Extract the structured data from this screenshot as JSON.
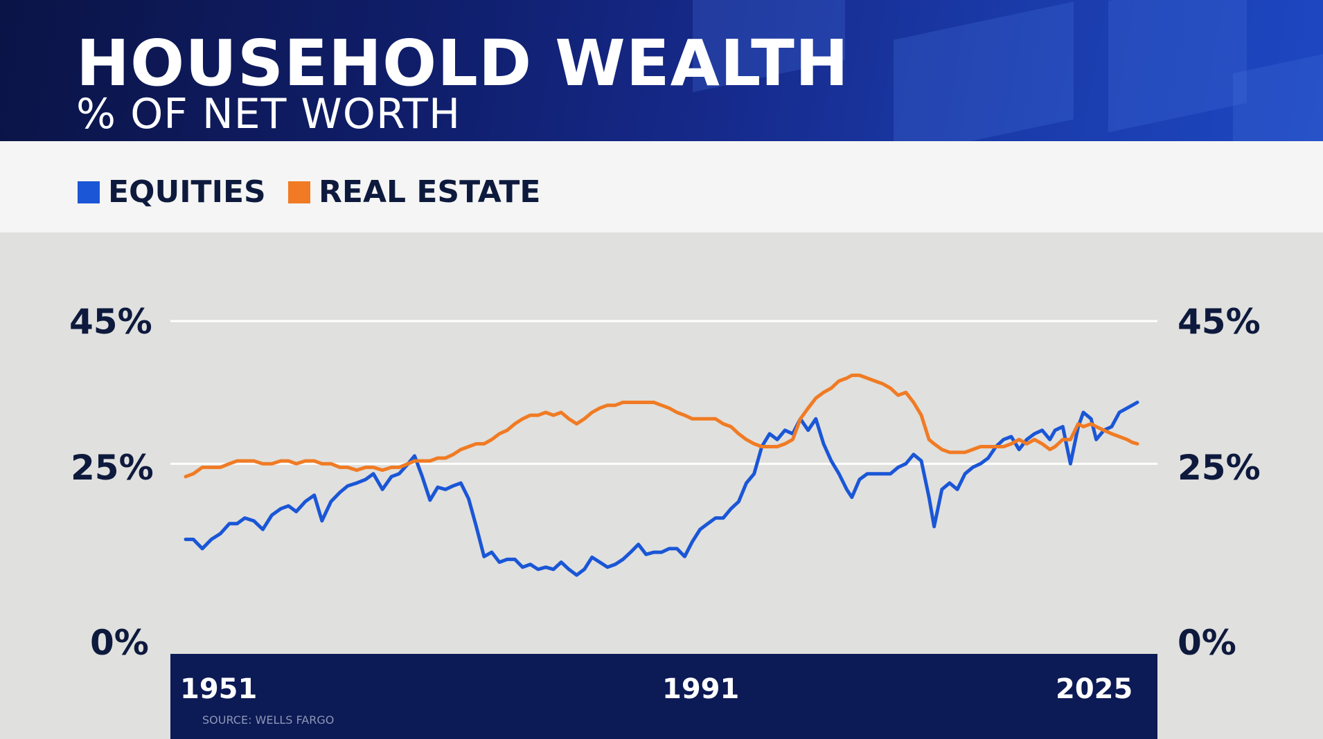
{
  "chart_data": {
    "type": "line",
    "title": "HOUSEHOLD WEALTH",
    "subtitle": "% OF NET WORTH",
    "source": "SOURCE: WELLS FARGO",
    "xlabel": "",
    "ylabel": "",
    "xlim": [
      1951,
      2025
    ],
    "ylim": [
      0,
      45
    ],
    "x_ticks": [
      "1951",
      "1991",
      "2025"
    ],
    "y_ticks": [
      "45%",
      "25%",
      "0%"
    ],
    "gridlines": [
      25,
      45
    ],
    "legend": [
      "EQUITIES",
      "REAL ESTATE"
    ],
    "series": [
      {
        "name": "EQUITIES",
        "color": "#1a56d6",
        "points": [
          [
            1951.0,
            14.4
          ],
          [
            1951.6,
            14.4
          ],
          [
            1952.3,
            13.1
          ],
          [
            1953.0,
            14.4
          ],
          [
            1953.7,
            15.2
          ],
          [
            1954.4,
            16.6
          ],
          [
            1955.0,
            16.6
          ],
          [
            1955.6,
            17.4
          ],
          [
            1956.3,
            17.0
          ],
          [
            1957.0,
            15.8
          ],
          [
            1957.7,
            17.8
          ],
          [
            1958.4,
            18.7
          ],
          [
            1959.0,
            19.1
          ],
          [
            1959.6,
            18.3
          ],
          [
            1960.3,
            19.7
          ],
          [
            1961.0,
            20.6
          ],
          [
            1961.6,
            17.0
          ],
          [
            1962.3,
            19.7
          ],
          [
            1963.0,
            21.0
          ],
          [
            1963.6,
            21.9
          ],
          [
            1964.3,
            22.3
          ],
          [
            1965.0,
            22.8
          ],
          [
            1965.6,
            23.6
          ],
          [
            1966.3,
            21.4
          ],
          [
            1967.0,
            23.2
          ],
          [
            1967.6,
            23.6
          ],
          [
            1968.3,
            25.0
          ],
          [
            1968.8,
            26.1
          ],
          [
            1969.4,
            23.2
          ],
          [
            1970.0,
            19.9
          ],
          [
            1970.6,
            21.7
          ],
          [
            1971.2,
            21.4
          ],
          [
            1971.8,
            21.9
          ],
          [
            1972.4,
            22.3
          ],
          [
            1973.0,
            20.1
          ],
          [
            1973.6,
            16.2
          ],
          [
            1974.2,
            12.0
          ],
          [
            1974.8,
            12.6
          ],
          [
            1975.4,
            11.2
          ],
          [
            1976.0,
            11.6
          ],
          [
            1976.6,
            11.6
          ],
          [
            1977.2,
            10.5
          ],
          [
            1977.8,
            10.9
          ],
          [
            1978.4,
            10.2
          ],
          [
            1979.0,
            10.5
          ],
          [
            1979.6,
            10.2
          ],
          [
            1980.2,
            11.2
          ],
          [
            1980.8,
            10.2
          ],
          [
            1981.4,
            9.4
          ],
          [
            1982.0,
            10.2
          ],
          [
            1982.6,
            11.9
          ],
          [
            1983.2,
            11.2
          ],
          [
            1983.8,
            10.5
          ],
          [
            1984.4,
            10.9
          ],
          [
            1985.0,
            11.6
          ],
          [
            1985.6,
            12.6
          ],
          [
            1986.2,
            13.7
          ],
          [
            1986.8,
            12.3
          ],
          [
            1987.4,
            12.6
          ],
          [
            1988.0,
            12.6
          ],
          [
            1988.6,
            13.1
          ],
          [
            1989.2,
            13.1
          ],
          [
            1989.8,
            12.0
          ],
          [
            1990.4,
            14.1
          ],
          [
            1991.0,
            15.8
          ],
          [
            1991.6,
            16.6
          ],
          [
            1992.2,
            17.4
          ],
          [
            1992.8,
            17.4
          ],
          [
            1993.4,
            18.7
          ],
          [
            1994.0,
            19.7
          ],
          [
            1994.6,
            22.3
          ],
          [
            1995.2,
            23.6
          ],
          [
            1995.8,
            27.4
          ],
          [
            1996.4,
            29.2
          ],
          [
            1997.0,
            28.4
          ],
          [
            1997.6,
            29.7
          ],
          [
            1998.2,
            29.2
          ],
          [
            1998.8,
            31.3
          ],
          [
            1999.4,
            29.7
          ],
          [
            2000.0,
            31.3
          ],
          [
            2000.6,
            27.8
          ],
          [
            2001.2,
            25.4
          ],
          [
            2001.8,
            23.6
          ],
          [
            2002.4,
            21.4
          ],
          [
            2002.8,
            20.3
          ],
          [
            2003.4,
            22.8
          ],
          [
            2004.0,
            23.6
          ],
          [
            2004.6,
            23.6
          ],
          [
            2005.2,
            23.6
          ],
          [
            2005.8,
            23.6
          ],
          [
            2006.4,
            24.5
          ],
          [
            2007.0,
            25.0
          ],
          [
            2007.6,
            26.3
          ],
          [
            2008.2,
            25.4
          ],
          [
            2008.8,
            20.3
          ],
          [
            2009.2,
            16.2
          ],
          [
            2009.8,
            21.4
          ],
          [
            2010.4,
            22.3
          ],
          [
            2011.0,
            21.4
          ],
          [
            2011.6,
            23.6
          ],
          [
            2012.2,
            24.5
          ],
          [
            2012.8,
            25.0
          ],
          [
            2013.4,
            25.8
          ],
          [
            2014.0,
            27.4
          ],
          [
            2014.6,
            28.4
          ],
          [
            2015.2,
            28.8
          ],
          [
            2015.8,
            27.0
          ],
          [
            2016.4,
            28.4
          ],
          [
            2017.0,
            29.2
          ],
          [
            2017.6,
            29.7
          ],
          [
            2018.2,
            28.4
          ],
          [
            2018.6,
            29.7
          ],
          [
            2019.2,
            30.2
          ],
          [
            2019.8,
            25.0
          ],
          [
            2020.4,
            30.2
          ],
          [
            2020.8,
            32.2
          ],
          [
            2021.4,
            31.3
          ],
          [
            2021.8,
            28.4
          ],
          [
            2022.4,
            29.7
          ],
          [
            2023.0,
            30.2
          ],
          [
            2023.6,
            32.2
          ],
          [
            2024.2,
            32.8
          ],
          [
            2024.6,
            33.2
          ],
          [
            2025.0,
            33.6
          ]
        ]
      },
      {
        "name": "REAL ESTATE",
        "color": "#f07b24",
        "points": [
          [
            1951.0,
            23.2
          ],
          [
            1951.6,
            23.6
          ],
          [
            1952.3,
            24.5
          ],
          [
            1953.0,
            24.5
          ],
          [
            1953.7,
            24.5
          ],
          [
            1954.4,
            25.0
          ],
          [
            1955.0,
            25.4
          ],
          [
            1955.6,
            25.4
          ],
          [
            1956.3,
            25.4
          ],
          [
            1957.0,
            25.0
          ],
          [
            1957.7,
            25.0
          ],
          [
            1958.4,
            25.4
          ],
          [
            1959.0,
            25.4
          ],
          [
            1959.6,
            25.0
          ],
          [
            1960.3,
            25.4
          ],
          [
            1961.0,
            25.4
          ],
          [
            1961.6,
            25.0
          ],
          [
            1962.3,
            25.0
          ],
          [
            1963.0,
            24.5
          ],
          [
            1963.6,
            24.5
          ],
          [
            1964.3,
            24.1
          ],
          [
            1965.0,
            24.5
          ],
          [
            1965.6,
            24.5
          ],
          [
            1966.3,
            24.1
          ],
          [
            1967.0,
            24.5
          ],
          [
            1967.6,
            24.5
          ],
          [
            1968.3,
            25.0
          ],
          [
            1968.8,
            25.4
          ],
          [
            1969.4,
            25.4
          ],
          [
            1970.0,
            25.4
          ],
          [
            1970.6,
            25.8
          ],
          [
            1971.2,
            25.8
          ],
          [
            1971.8,
            26.3
          ],
          [
            1972.4,
            27.0
          ],
          [
            1973.0,
            27.4
          ],
          [
            1973.6,
            27.8
          ],
          [
            1974.2,
            27.8
          ],
          [
            1974.8,
            28.4
          ],
          [
            1975.4,
            29.2
          ],
          [
            1976.0,
            29.7
          ],
          [
            1976.6,
            30.6
          ],
          [
            1977.2,
            31.3
          ],
          [
            1977.8,
            31.8
          ],
          [
            1978.4,
            31.8
          ],
          [
            1979.0,
            32.2
          ],
          [
            1979.6,
            31.8
          ],
          [
            1980.2,
            32.2
          ],
          [
            1980.8,
            31.3
          ],
          [
            1981.4,
            30.6
          ],
          [
            1982.0,
            31.3
          ],
          [
            1982.6,
            32.2
          ],
          [
            1983.2,
            32.8
          ],
          [
            1983.8,
            33.2
          ],
          [
            1984.4,
            33.2
          ],
          [
            1985.0,
            33.6
          ],
          [
            1985.6,
            33.6
          ],
          [
            1986.2,
            33.6
          ],
          [
            1986.8,
            33.6
          ],
          [
            1987.4,
            33.6
          ],
          [
            1988.0,
            33.2
          ],
          [
            1988.6,
            32.8
          ],
          [
            1989.2,
            32.2
          ],
          [
            1989.8,
            31.8
          ],
          [
            1990.4,
            31.3
          ],
          [
            1991.0,
            31.3
          ],
          [
            1991.6,
            31.3
          ],
          [
            1992.2,
            31.3
          ],
          [
            1992.8,
            30.6
          ],
          [
            1993.4,
            30.2
          ],
          [
            1994.0,
            29.2
          ],
          [
            1994.6,
            28.4
          ],
          [
            1995.2,
            27.8
          ],
          [
            1995.8,
            27.4
          ],
          [
            1996.4,
            27.4
          ],
          [
            1997.0,
            27.4
          ],
          [
            1997.6,
            27.8
          ],
          [
            1998.2,
            28.4
          ],
          [
            1998.8,
            31.3
          ],
          [
            1999.4,
            32.8
          ],
          [
            2000.0,
            34.2
          ],
          [
            2000.6,
            35.0
          ],
          [
            2001.2,
            35.6
          ],
          [
            2001.8,
            36.6
          ],
          [
            2002.4,
            37.0
          ],
          [
            2002.8,
            37.4
          ],
          [
            2003.4,
            37.4
          ],
          [
            2004.0,
            37.0
          ],
          [
            2004.6,
            36.6
          ],
          [
            2005.2,
            36.2
          ],
          [
            2005.8,
            35.6
          ],
          [
            2006.4,
            34.6
          ],
          [
            2007.0,
            35.0
          ],
          [
            2007.6,
            33.6
          ],
          [
            2008.2,
            31.8
          ],
          [
            2008.8,
            28.4
          ],
          [
            2009.2,
            27.8
          ],
          [
            2009.8,
            27.0
          ],
          [
            2010.4,
            26.6
          ],
          [
            2011.0,
            26.6
          ],
          [
            2011.6,
            26.6
          ],
          [
            2012.2,
            27.0
          ],
          [
            2012.8,
            27.4
          ],
          [
            2013.4,
            27.4
          ],
          [
            2014.0,
            27.4
          ],
          [
            2014.6,
            27.4
          ],
          [
            2015.2,
            27.8
          ],
          [
            2015.8,
            28.4
          ],
          [
            2016.4,
            27.8
          ],
          [
            2017.0,
            28.4
          ],
          [
            2017.6,
            27.8
          ],
          [
            2018.2,
            27.0
          ],
          [
            2018.6,
            27.4
          ],
          [
            2019.2,
            28.4
          ],
          [
            2019.8,
            28.4
          ],
          [
            2020.4,
            30.6
          ],
          [
            2020.8,
            30.2
          ],
          [
            2021.4,
            30.6
          ],
          [
            2021.8,
            30.2
          ],
          [
            2022.4,
            29.7
          ],
          [
            2023.0,
            29.2
          ],
          [
            2023.6,
            28.8
          ],
          [
            2024.2,
            28.4
          ],
          [
            2024.6,
            28.0
          ],
          [
            2025.0,
            27.8
          ]
        ]
      }
    ]
  }
}
